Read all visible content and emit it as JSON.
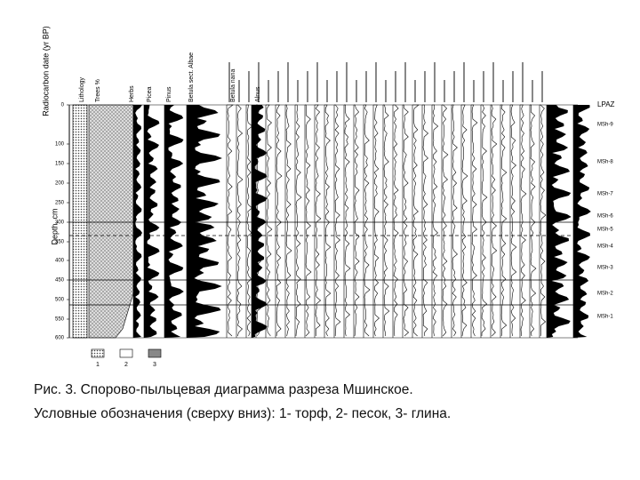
{
  "figure": {
    "date_axis_title": "Radiocarbon date (yr BP)",
    "depth_label": "Depth, cm",
    "depth_ticks": [
      "0",
      "100",
      "150",
      "200",
      "250",
      "300",
      "350",
      "400",
      "450",
      "500",
      "550",
      "600"
    ],
    "columns": [
      "Lithology",
      "Trees %",
      "Herbs",
      "Picea",
      "Pinus",
      "Betula sect. Albae",
      "Betula nana",
      "Alnus"
    ],
    "zone_header": "LPAZ",
    "zones": [
      "MSh-9",
      "MSh-8",
      "MSh-7",
      "MSh-6",
      "MSh-5",
      "MSh-4",
      "MSh-3",
      "MSh-2",
      "MSh-1"
    ],
    "legend": [
      "1",
      "2",
      "3"
    ]
  },
  "caption": {
    "line1": "Рис. 3. Спорово-пыльцевая диаграмма разреза Мшинское.",
    "line2": "Условные обозначения (сверху вниз): 1- торф, 2- песок, 3- глина."
  }
}
